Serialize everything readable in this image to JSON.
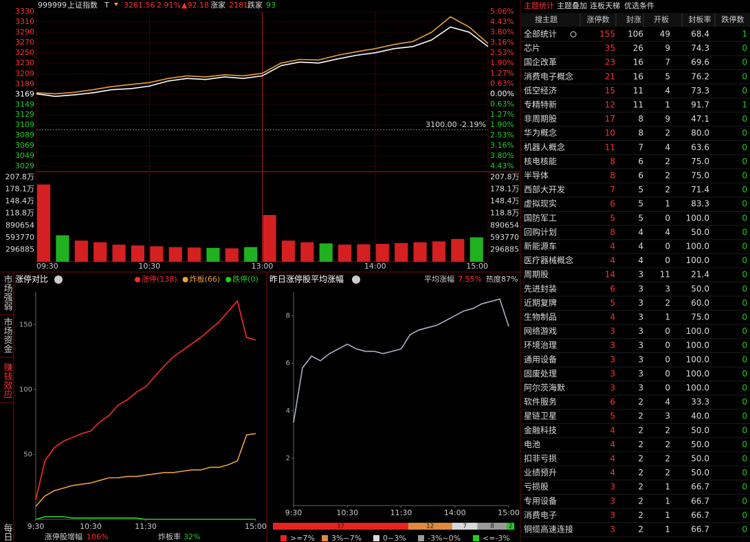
{
  "header": {
    "code": "999999",
    "name": "上证指数",
    "flag": "T",
    "price": "3261.56",
    "pct": "2.91%",
    "change": "▲92.18",
    "up_label": "涨家",
    "up": "2181",
    "down_label": "跌家",
    "down": "93"
  },
  "side_tabs": [
    "市场强弱",
    "市场资金",
    "赚钱效应",
    "每日"
  ],
  "chart_data": [
    {
      "type": "line",
      "xlim": [
        0,
        240
      ],
      "x": [
        0,
        10,
        20,
        30,
        40,
        50,
        60,
        70,
        80,
        90,
        100,
        110,
        120,
        130,
        140,
        150,
        160,
        170,
        180,
        190,
        200,
        210,
        220,
        230,
        240
      ],
      "series": [
        {
          "color": "#ffffff",
          "values": [
            3170,
            3165,
            3168,
            3172,
            3178,
            3180,
            3185,
            3195,
            3200,
            3198,
            3203,
            3200,
            3205,
            3225,
            3232,
            3230,
            3238,
            3245,
            3250,
            3258,
            3262,
            3275,
            3300,
            3290,
            3262
          ]
        },
        {
          "color": "#e8a33c",
          "values": [
            3172,
            3170,
            3173,
            3178,
            3184,
            3188,
            3192,
            3200,
            3205,
            3203,
            3207,
            3205,
            3210,
            3230,
            3237,
            3236,
            3245,
            3252,
            3258,
            3266,
            3272,
            3290,
            3320,
            3300,
            3268
          ]
        }
      ],
      "ylim": [
        3029,
        3330
      ],
      "yticks": [
        3330,
        3310,
        3290,
        3270,
        3250,
        3230,
        3209,
        3189,
        3169,
        3149,
        3129,
        3109,
        3089,
        3069,
        3049,
        3029
      ],
      "y2lim": [
        -4.43,
        5.06
      ],
      "y2ticks": [
        {
          "value": 5.06,
          "label": "5.06%"
        },
        {
          "value": 4.43,
          "label": "4.43%"
        },
        {
          "value": 3.8,
          "label": "3.80%"
        },
        {
          "value": 3.16,
          "label": "3.16%"
        },
        {
          "value": 2.53,
          "label": "2.53%"
        },
        {
          "value": 1.9,
          "label": "1.90%"
        },
        {
          "value": 1.27,
          "label": "1.27%"
        },
        {
          "value": 0.63,
          "label": "0.63%"
        },
        {
          "value": 0,
          "label": "0.00%"
        },
        {
          "value": -0.63,
          "label": "0.63%"
        },
        {
          "value": -1.27,
          "label": "1.27%"
        },
        {
          "value": -1.9,
          "label": "1.90%"
        },
        {
          "value": -2.53,
          "label": "2.53%"
        },
        {
          "value": -3.16,
          "label": "3.16%"
        },
        {
          "value": -3.8,
          "label": "3.80%"
        },
        {
          "value": -4.43,
          "label": "4.43%"
        }
      ],
      "annotations": [
        {
          "label": "3100.00  -2.19%",
          "y": 3100
        }
      ]
    },
    {
      "type": "bar",
      "xlim": [
        0,
        240
      ],
      "x": [
        0,
        10,
        20,
        30,
        40,
        50,
        60,
        70,
        80,
        90,
        100,
        110,
        120,
        130,
        140,
        150,
        160,
        170,
        180,
        190,
        200,
        210,
        220,
        230
      ],
      "values": [
        1900000,
        650000,
        520000,
        480000,
        420000,
        400000,
        380000,
        360000,
        350000,
        340000,
        330000,
        360000,
        1150000,
        520000,
        480000,
        450000,
        420000,
        430000,
        440000,
        460000,
        480000,
        500000,
        560000,
        600000
      ],
      "ylim": [
        0,
        2078000
      ],
      "yticks": [
        {
          "value": 2078000,
          "label": "207.8万"
        },
        {
          "value": 1781000,
          "label": "178.1万"
        },
        {
          "value": 1484000,
          "label": "148.4万"
        },
        {
          "value": 1188000,
          "label": "118.8万"
        },
        890654,
        593770,
        296885
      ],
      "xticks": [
        {
          "value": 0,
          "label": "09:30"
        },
        {
          "value": 60,
          "label": "10:30"
        },
        {
          "value": 120,
          "label": "13:00"
        },
        {
          "value": 180,
          "label": "14:00"
        },
        {
          "value": 240,
          "label": "15:00"
        }
      ]
    },
    {
      "type": "line",
      "title": "涨停对比",
      "xlim": [
        0,
        240
      ],
      "x": [
        0,
        10,
        20,
        30,
        40,
        50,
        60,
        70,
        80,
        90,
        100,
        110,
        120,
        130,
        140,
        150,
        160,
        170,
        180,
        190,
        200,
        210,
        220,
        230,
        240
      ],
      "series": [
        {
          "name": "涨停(138)",
          "color": "#ff2a2a",
          "values": [
            15,
            45,
            55,
            60,
            63,
            66,
            68,
            75,
            80,
            88,
            92,
            98,
            102,
            110,
            118,
            125,
            130,
            135,
            140,
            146,
            152,
            160,
            168,
            140,
            138
          ]
        },
        {
          "name": "炸板(66)",
          "color": "#f0a040",
          "values": [
            10,
            18,
            22,
            24,
            26,
            27,
            28,
            30,
            32,
            32,
            33,
            33,
            34,
            35,
            36,
            36,
            37,
            38,
            38,
            40,
            40,
            42,
            45,
            65,
            66
          ]
        },
        {
          "name": "跌停(0)",
          "color": "#22cc22",
          "values": [
            0,
            2,
            2,
            2,
            1,
            1,
            1,
            1,
            1,
            1,
            1,
            1,
            0,
            0,
            0,
            0,
            0,
            0,
            0,
            0,
            0,
            0,
            0,
            0,
            0
          ]
        }
      ],
      "ylim": [
        0,
        175
      ],
      "yticks": [
        50,
        100,
        150
      ],
      "xticks": [
        {
          "value": 0,
          "label": "9:30"
        },
        {
          "value": 60,
          "label": "10:30"
        },
        {
          "value": 120,
          "label": "11:30"
        },
        {
          "value": 240,
          "label": "15:00"
        }
      ],
      "stats": [
        {
          "label": "涨停股增幅",
          "value": "106%",
          "color": "#ff3030"
        },
        {
          "label": "炸板率",
          "value": "32%",
          "color": "#22cc22"
        }
      ]
    },
    {
      "type": "line",
      "title": "昨日涨停股平均涨幅",
      "xlim": [
        0,
        240
      ],
      "x": [
        0,
        10,
        20,
        30,
        40,
        50,
        60,
        70,
        80,
        90,
        100,
        110,
        120,
        130,
        140,
        150,
        160,
        170,
        180,
        190,
        200,
        210,
        220,
        230,
        240
      ],
      "series": [
        {
          "color": "#a9b4c8",
          "values": [
            3.5,
            5.8,
            6.3,
            6.1,
            6.4,
            6.6,
            6.8,
            6.6,
            6.5,
            6.5,
            6.4,
            6.5,
            6.6,
            7.2,
            7.4,
            7.5,
            7.6,
            7.8,
            8.0,
            8.2,
            8.3,
            8.5,
            8.6,
            8.7,
            7.55
          ]
        }
      ],
      "ylim": [
        0,
        9
      ],
      "yticks": [
        2,
        4,
        6,
        8
      ],
      "xticks": [
        {
          "value": 0,
          "label": "9:30"
        },
        {
          "value": 60,
          "label": "10:30"
        },
        {
          "value": 120,
          "label": "11:30"
        },
        {
          "value": 180,
          "label": "14:00"
        },
        {
          "value": 240,
          "label": "15:00"
        }
      ],
      "stats": [
        {
          "label": "平均涨幅",
          "value": "7.55%",
          "color": "#ff3030"
        },
        {
          "label": "热度87%",
          "color": "#cccccc"
        }
      ]
    },
    {
      "type": "stacked_bar",
      "categories": [
        ">=7%",
        "3%~7%",
        "0~3%",
        "-3%~0%",
        "<=-3%"
      ],
      "values": [
        37,
        12,
        7,
        8,
        2
      ],
      "colors": [
        "#e8231e",
        "#e08a3c",
        "#d8d8d8",
        "#9a9a9a",
        "#22cc22"
      ]
    }
  ],
  "table": {
    "tabs": [
      "主题统计",
      "主题叠加",
      "连板天梯",
      "优选条件"
    ],
    "columns": [
      "搜主题",
      "涨停数",
      "封涨",
      "开板",
      "封板率",
      "跌停数"
    ],
    "rows": [
      [
        "全部统计",
        "155",
        "106",
        "49",
        "68.4",
        "1"
      ],
      [
        "芯片",
        "35",
        "26",
        "9",
        "74.3",
        "0"
      ],
      [
        "国企改革",
        "23",
        "16",
        "7",
        "69.6",
        "0"
      ],
      [
        "消费电子概念",
        "21",
        "16",
        "5",
        "76.2",
        "0"
      ],
      [
        "低空经济",
        "15",
        "11",
        "4",
        "73.3",
        "0"
      ],
      [
        "专精特新",
        "12",
        "11",
        "1",
        "91.7",
        "1"
      ],
      [
        "非周期股",
        "17",
        "8",
        "9",
        "47.1",
        "0"
      ],
      [
        "华为概念",
        "10",
        "8",
        "2",
        "80.0",
        "0"
      ],
      [
        "机器人概念",
        "11",
        "7",
        "4",
        "63.6",
        "0"
      ],
      [
        "核电核能",
        "8",
        "6",
        "2",
        "75.0",
        "0"
      ],
      [
        "半导体",
        "8",
        "6",
        "2",
        "75.0",
        "0"
      ],
      [
        "西部大开发",
        "7",
        "5",
        "2",
        "71.4",
        "0"
      ],
      [
        "虚拟现实",
        "6",
        "5",
        "1",
        "83.3",
        "0"
      ],
      [
        "国防军工",
        "5",
        "5",
        "0",
        "100.0",
        "0"
      ],
      [
        "回购计划",
        "8",
        "4",
        "4",
        "50.0",
        "0"
      ],
      [
        "新能源车",
        "4",
        "4",
        "0",
        "100.0",
        "0"
      ],
      [
        "医疗器械概念",
        "4",
        "4",
        "0",
        "100.0",
        "0"
      ],
      [
        "周期股",
        "14",
        "3",
        "11",
        "21.4",
        "0"
      ],
      [
        "先进封装",
        "6",
        "3",
        "3",
        "50.0",
        "0"
      ],
      [
        "近期复牌",
        "5",
        "3",
        "2",
        "60.0",
        "0"
      ],
      [
        "生物制品",
        "4",
        "3",
        "1",
        "75.0",
        "0"
      ],
      [
        "网络游戏",
        "3",
        "3",
        "0",
        "100.0",
        "0"
      ],
      [
        "环境治理",
        "3",
        "3",
        "0",
        "100.0",
        "0"
      ],
      [
        "通用设备",
        "3",
        "3",
        "0",
        "100.0",
        "0"
      ],
      [
        "固废处理",
        "3",
        "3",
        "0",
        "100.0",
        "0"
      ],
      [
        "阿尔茨海默",
        "3",
        "3",
        "0",
        "100.0",
        "0"
      ],
      [
        "软件服务",
        "6",
        "2",
        "4",
        "33.3",
        "0"
      ],
      [
        "星链卫星",
        "5",
        "2",
        "3",
        "40.0",
        "0"
      ],
      [
        "金融科技",
        "4",
        "2",
        "2",
        "50.0",
        "0"
      ],
      [
        "电池",
        "4",
        "2",
        "2",
        "50.0",
        "0"
      ],
      [
        "扣非亏损",
        "4",
        "2",
        "2",
        "50.0",
        "0"
      ],
      [
        "业绩预升",
        "4",
        "2",
        "2",
        "50.0",
        "0"
      ],
      [
        "亏损股",
        "3",
        "2",
        "1",
        "66.7",
        "0"
      ],
      [
        "专用设备",
        "3",
        "2",
        "1",
        "66.7",
        "0"
      ],
      [
        "消费电子",
        "3",
        "2",
        "1",
        "66.7",
        "0"
      ],
      [
        "铜缆高速连接",
        "3",
        "2",
        "1",
        "66.7",
        "0"
      ]
    ]
  }
}
